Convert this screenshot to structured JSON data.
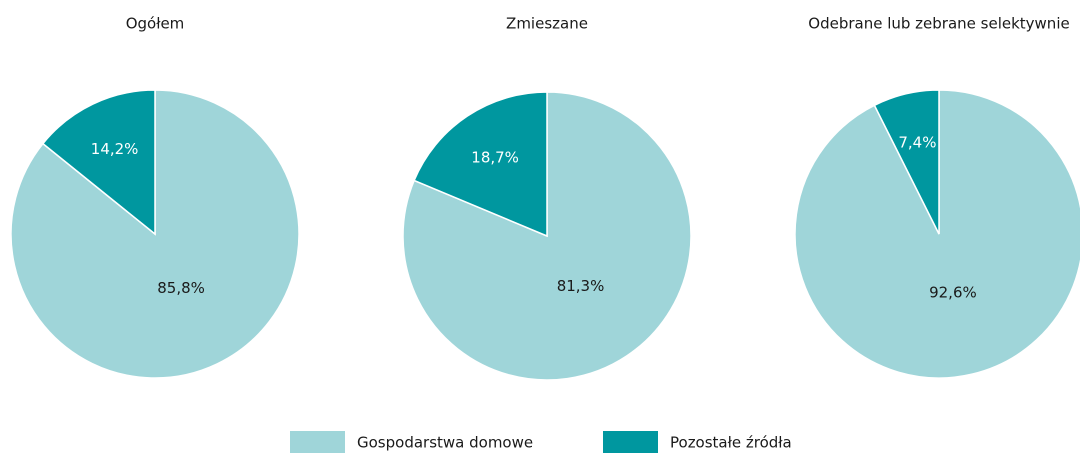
{
  "chart_data": [
    {
      "type": "pie",
      "title": "Ogółem",
      "categories": [
        "Gospodarstwa domowe",
        "Pozostałe źródła"
      ],
      "values": [
        85.8,
        14.2
      ],
      "value_labels": [
        "85,8%",
        "14,2%"
      ],
      "colors": [
        "#9fd5d9",
        "#00979f"
      ]
    },
    {
      "type": "pie",
      "title": "Zmieszane",
      "categories": [
        "Gospodarstwa domowe",
        "Pozostałe źródła"
      ],
      "values": [
        81.3,
        18.7
      ],
      "value_labels": [
        "81,3%",
        "18,7%"
      ],
      "colors": [
        "#9fd5d9",
        "#00979f"
      ]
    },
    {
      "type": "pie",
      "title": "Odebrane lub zebrane selektywnie",
      "categories": [
        "Gospodarstwa domowe",
        "Pozostałe źródła"
      ],
      "values": [
        92.6,
        7.4
      ],
      "value_labels": [
        "92,6%",
        "7,4%"
      ],
      "colors": [
        "#9fd5d9",
        "#00979f"
      ]
    }
  ]
}
